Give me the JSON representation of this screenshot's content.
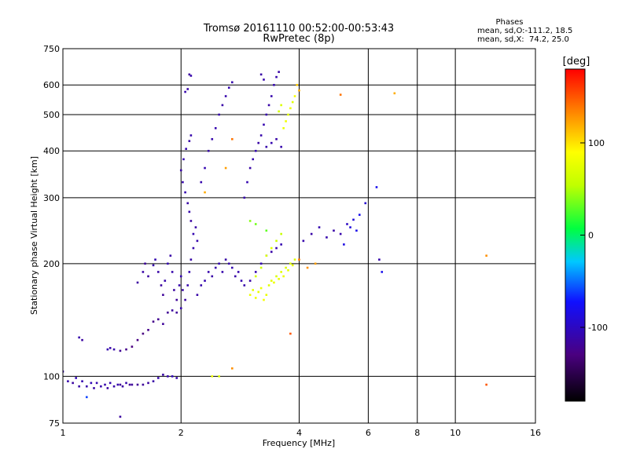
{
  "chart_data": {
    "type": "scatter",
    "title": "Tromsø 20161110 00:52:00-00:53:43",
    "subtitle": "RwPretec (8p)",
    "xlabel": "Frequency [MHz]",
    "ylabel": "Stationary phase Virtual Height [km]",
    "x_scale": "log",
    "y_scale": "log",
    "xlim": [
      1,
      16
    ],
    "ylim": [
      75,
      750
    ],
    "x_ticks": [
      1,
      2,
      4,
      6,
      8,
      10,
      16
    ],
    "x_tick_labels": [
      "1",
      "2",
      "4",
      "6",
      "8",
      "10",
      "16"
    ],
    "y_ticks": [
      75,
      100,
      200,
      300,
      400,
      500,
      600,
      750
    ],
    "y_tick_labels": [
      "75",
      "100",
      "200",
      "300",
      "400",
      "500",
      "600",
      "750"
    ],
    "grid": true,
    "phase_box": {
      "heading": "Phases",
      "line_o": "mean, sd,O:-111.2, 18.5",
      "line_x": "mean, sd,X:  74.2, 25.0"
    },
    "colorbar": {
      "label": "[deg]",
      "range": [
        -180,
        180
      ],
      "ticks": [
        100,
        0,
        -100
      ],
      "tick_labels": [
        "100",
        "0",
        "-100"
      ]
    },
    "points": [
      [
        1.0,
        103,
        -110
      ],
      [
        1.03,
        97,
        -110
      ],
      [
        1.06,
        96,
        -115
      ],
      [
        1.08,
        99,
        -105
      ],
      [
        1.1,
        94,
        -112
      ],
      [
        1.12,
        97,
        -108
      ],
      [
        1.15,
        94,
        -110
      ],
      [
        1.18,
        96,
        -105
      ],
      [
        1.2,
        93,
        -112
      ],
      [
        1.22,
        96,
        -108
      ],
      [
        1.25,
        94,
        -110
      ],
      [
        1.28,
        95,
        -110
      ],
      [
        1.3,
        93,
        -115
      ],
      [
        1.32,
        96,
        -108
      ],
      [
        1.35,
        94,
        -112
      ],
      [
        1.38,
        95,
        -110
      ],
      [
        1.4,
        95,
        -118
      ],
      [
        1.42,
        94,
        -115
      ],
      [
        1.45,
        96,
        -110
      ],
      [
        1.48,
        95,
        -120
      ],
      [
        1.5,
        95,
        -118
      ],
      [
        1.55,
        95,
        -120
      ],
      [
        1.6,
        95,
        -118
      ],
      [
        1.65,
        96,
        -115
      ],
      [
        1.7,
        97,
        -112
      ],
      [
        1.75,
        99,
        -110
      ],
      [
        1.8,
        101,
        -112
      ],
      [
        1.85,
        100,
        -110
      ],
      [
        1.9,
        100,
        -105
      ],
      [
        1.95,
        99,
        -110
      ],
      [
        1.1,
        127,
        -110
      ],
      [
        1.12,
        125,
        -115
      ],
      [
        1.3,
        118,
        -108
      ],
      [
        1.32,
        119,
        -112
      ],
      [
        1.35,
        118,
        -110
      ],
      [
        1.4,
        117,
        -120
      ],
      [
        1.45,
        118,
        -125
      ],
      [
        1.5,
        120,
        -130
      ],
      [
        1.55,
        125,
        -128
      ],
      [
        1.6,
        130,
        -130
      ],
      [
        1.65,
        133,
        -125
      ],
      [
        1.7,
        140,
        -125
      ],
      [
        1.75,
        142,
        -122
      ],
      [
        1.8,
        138,
        -118
      ],
      [
        1.85,
        148,
        -120
      ],
      [
        1.9,
        150,
        -115
      ],
      [
        1.95,
        148,
        -118
      ],
      [
        2.0,
        152,
        -110
      ],
      [
        1.55,
        178,
        -115
      ],
      [
        1.6,
        190,
        -112
      ],
      [
        1.62,
        200,
        -118
      ],
      [
        1.65,
        185,
        -115
      ],
      [
        1.7,
        198,
        -110
      ],
      [
        1.72,
        205,
        -108
      ],
      [
        1.75,
        190,
        -112
      ],
      [
        1.78,
        175,
        -115
      ],
      [
        1.8,
        165,
        -118
      ],
      [
        1.82,
        180,
        -110
      ],
      [
        1.85,
        200,
        -108
      ],
      [
        1.88,
        210,
        -112
      ],
      [
        1.9,
        190,
        -110
      ],
      [
        1.92,
        170,
        -115
      ],
      [
        1.95,
        160,
        -118
      ],
      [
        1.98,
        175,
        -110
      ],
      [
        2.0,
        185,
        -108
      ],
      [
        2.02,
        170,
        -112
      ],
      [
        2.05,
        160,
        -115
      ],
      [
        2.08,
        175,
        -110
      ],
      [
        2.1,
        190,
        -108
      ],
      [
        2.12,
        205,
        -112
      ],
      [
        2.15,
        220,
        -110
      ],
      [
        2.15,
        240,
        -108
      ],
      [
        2.18,
        250,
        -112
      ],
      [
        2.2,
        230,
        -110
      ],
      [
        2.12,
        260,
        -115
      ],
      [
        2.1,
        275,
        -110
      ],
      [
        2.08,
        290,
        -112
      ],
      [
        2.05,
        310,
        -108
      ],
      [
        2.02,
        330,
        -110
      ],
      [
        2.0,
        355,
        -112
      ],
      [
        2.03,
        380,
        -108
      ],
      [
        2.06,
        405,
        -110
      ],
      [
        2.1,
        425,
        -112
      ],
      [
        2.12,
        440,
        -110
      ],
      [
        2.05,
        575,
        -110
      ],
      [
        2.08,
        585,
        -112
      ],
      [
        2.1,
        640,
        -115
      ],
      [
        2.12,
        635,
        -110
      ],
      [
        2.25,
        330,
        -110
      ],
      [
        2.3,
        360,
        -108
      ],
      [
        2.35,
        400,
        -112
      ],
      [
        2.4,
        430,
        -110
      ],
      [
        2.45,
        460,
        -108
      ],
      [
        2.5,
        500,
        -110
      ],
      [
        2.55,
        530,
        -112
      ],
      [
        2.6,
        560,
        -110
      ],
      [
        2.65,
        590,
        -108
      ],
      [
        2.7,
        610,
        -110
      ],
      [
        2.2,
        165,
        -112
      ],
      [
        2.25,
        175,
        -110
      ],
      [
        2.3,
        180,
        -108
      ],
      [
        2.35,
        190,
        -110
      ],
      [
        2.4,
        185,
        -112
      ],
      [
        2.45,
        195,
        -110
      ],
      [
        2.5,
        200,
        -108
      ],
      [
        2.55,
        190,
        -110
      ],
      [
        2.6,
        205,
        -112
      ],
      [
        2.65,
        200,
        -110
      ],
      [
        2.7,
        195,
        -108
      ],
      [
        2.75,
        185,
        -112
      ],
      [
        2.8,
        190,
        -110
      ],
      [
        2.85,
        180,
        -108
      ],
      [
        2.9,
        175,
        -110
      ],
      [
        3.0,
        180,
        -112
      ],
      [
        3.1,
        190,
        -110
      ],
      [
        3.2,
        200,
        -108
      ],
      [
        3.3,
        210,
        -110
      ],
      [
        3.4,
        215,
        -112
      ],
      [
        3.5,
        220,
        -110
      ],
      [
        3.6,
        225,
        -108
      ],
      [
        2.9,
        300,
        -110
      ],
      [
        2.95,
        330,
        -108
      ],
      [
        3.0,
        360,
        -112
      ],
      [
        3.05,
        380,
        -110
      ],
      [
        3.1,
        400,
        -108
      ],
      [
        3.15,
        420,
        -112
      ],
      [
        3.2,
        440,
        -110
      ],
      [
        3.25,
        470,
        -108
      ],
      [
        3.3,
        500,
        -110
      ],
      [
        3.35,
        530,
        -112
      ],
      [
        3.4,
        560,
        -110
      ],
      [
        3.45,
        600,
        -108
      ],
      [
        3.5,
        630,
        -110
      ],
      [
        3.55,
        650,
        -112
      ],
      [
        3.3,
        410,
        -110
      ],
      [
        3.4,
        420,
        -108
      ],
      [
        3.5,
        430,
        -112
      ],
      [
        3.6,
        410,
        -110
      ],
      [
        3.2,
        640,
        -112
      ],
      [
        3.25,
        620,
        -110
      ],
      [
        3.0,
        165,
        80
      ],
      [
        3.05,
        170,
        75
      ],
      [
        3.1,
        162,
        82
      ],
      [
        3.15,
        168,
        78
      ],
      [
        3.2,
        172,
        80
      ],
      [
        3.25,
        160,
        85
      ],
      [
        3.3,
        165,
        78
      ],
      [
        3.35,
        175,
        72
      ],
      [
        3.4,
        180,
        75
      ],
      [
        3.45,
        178,
        80
      ],
      [
        3.5,
        185,
        70
      ],
      [
        3.55,
        182,
        76
      ],
      [
        3.6,
        190,
        72
      ],
      [
        3.65,
        185,
        78
      ],
      [
        3.7,
        195,
        70
      ],
      [
        3.75,
        192,
        75
      ],
      [
        3.8,
        200,
        72
      ],
      [
        3.85,
        198,
        78
      ],
      [
        3.9,
        205,
        70
      ],
      [
        3.1,
        185,
        65
      ],
      [
        3.2,
        195,
        60
      ],
      [
        3.3,
        210,
        68
      ],
      [
        3.4,
        220,
        70
      ],
      [
        3.5,
        230,
        62
      ],
      [
        3.6,
        240,
        58
      ],
      [
        3.65,
        460,
        78
      ],
      [
        3.7,
        480,
        82
      ],
      [
        3.75,
        500,
        75
      ],
      [
        3.8,
        520,
        80
      ],
      [
        3.85,
        540,
        72
      ],
      [
        3.9,
        560,
        85
      ],
      [
        3.6,
        530,
        70
      ],
      [
        3.55,
        510,
        65
      ],
      [
        3.95,
        600,
        110
      ],
      [
        4.0,
        580,
        120
      ],
      [
        3.0,
        260,
        40
      ],
      [
        3.1,
        255,
        35
      ],
      [
        3.3,
        245,
        30
      ],
      [
        4.1,
        230,
        -110
      ],
      [
        4.3,
        240,
        -112
      ],
      [
        4.5,
        250,
        -108
      ],
      [
        4.7,
        235,
        -110
      ],
      [
        4.9,
        245,
        -112
      ],
      [
        5.1,
        240,
        -110
      ],
      [
        5.3,
        255,
        -100
      ],
      [
        5.5,
        262,
        -90
      ],
      [
        5.7,
        270,
        -80
      ],
      [
        5.9,
        290,
        -95
      ],
      [
        5.2,
        225,
        -85
      ],
      [
        5.4,
        250,
        -88
      ],
      [
        5.6,
        245,
        -82
      ],
      [
        4.0,
        205,
        140
      ],
      [
        4.2,
        195,
        130
      ],
      [
        4.4,
        200,
        125
      ],
      [
        6.3,
        320,
        -80
      ],
      [
        6.4,
        205,
        -110
      ],
      [
        6.5,
        190,
        -80
      ],
      [
        5.1,
        565,
        140
      ],
      [
        7.0,
        570,
        120
      ],
      [
        12.0,
        210,
        130
      ],
      [
        12.0,
        95,
        150
      ],
      [
        3.8,
        130,
        150
      ],
      [
        2.7,
        105,
        130
      ],
      [
        2.4,
        100,
        80
      ],
      [
        2.5,
        100,
        70
      ],
      [
        1.15,
        88,
        -60
      ],
      [
        1.4,
        78,
        -115
      ],
      [
        2.3,
        310,
        120
      ],
      [
        2.7,
        430,
        140
      ],
      [
        2.6,
        360,
        125
      ]
    ]
  }
}
